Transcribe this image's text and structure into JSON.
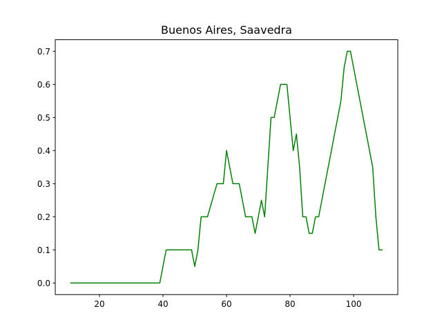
{
  "chart_data": {
    "type": "line",
    "title": "Buenos Aires, Saavedra",
    "xlabel": "",
    "ylabel": "",
    "xlim": [
      6.1,
      113.9
    ],
    "ylim": [
      -0.035,
      0.735
    ],
    "xticks": [
      20,
      40,
      60,
      80,
      100
    ],
    "yticks": [
      0.0,
      0.1,
      0.2,
      0.3,
      0.4,
      0.5,
      0.6,
      0.7
    ],
    "ytick_labels": [
      "0.0",
      "0.1",
      "0.2",
      "0.3",
      "0.4",
      "0.5",
      "0.6",
      "0.7"
    ],
    "grid": false,
    "legend": "none",
    "series": [
      {
        "color": "#008000",
        "x": [
          11,
          39,
          41,
          49,
          50,
          51,
          52,
          54,
          57,
          59,
          60,
          62,
          64,
          66,
          68,
          69,
          71,
          72,
          74,
          75,
          77,
          79,
          81,
          82,
          83,
          84,
          85,
          86,
          87,
          88,
          89,
          96,
          97,
          98,
          99,
          106,
          107,
          108,
          109
        ],
        "y": [
          0.0,
          0.0,
          0.1,
          0.1,
          0.05,
          0.1,
          0.2,
          0.2,
          0.3,
          0.3,
          0.4,
          0.3,
          0.3,
          0.2,
          0.2,
          0.15,
          0.25,
          0.2,
          0.5,
          0.5,
          0.6,
          0.6,
          0.4,
          0.45,
          0.35,
          0.2,
          0.2,
          0.15,
          0.15,
          0.2,
          0.2,
          0.55,
          0.65,
          0.7,
          0.7,
          0.35,
          0.2,
          0.1,
          0.1
        ]
      }
    ]
  }
}
